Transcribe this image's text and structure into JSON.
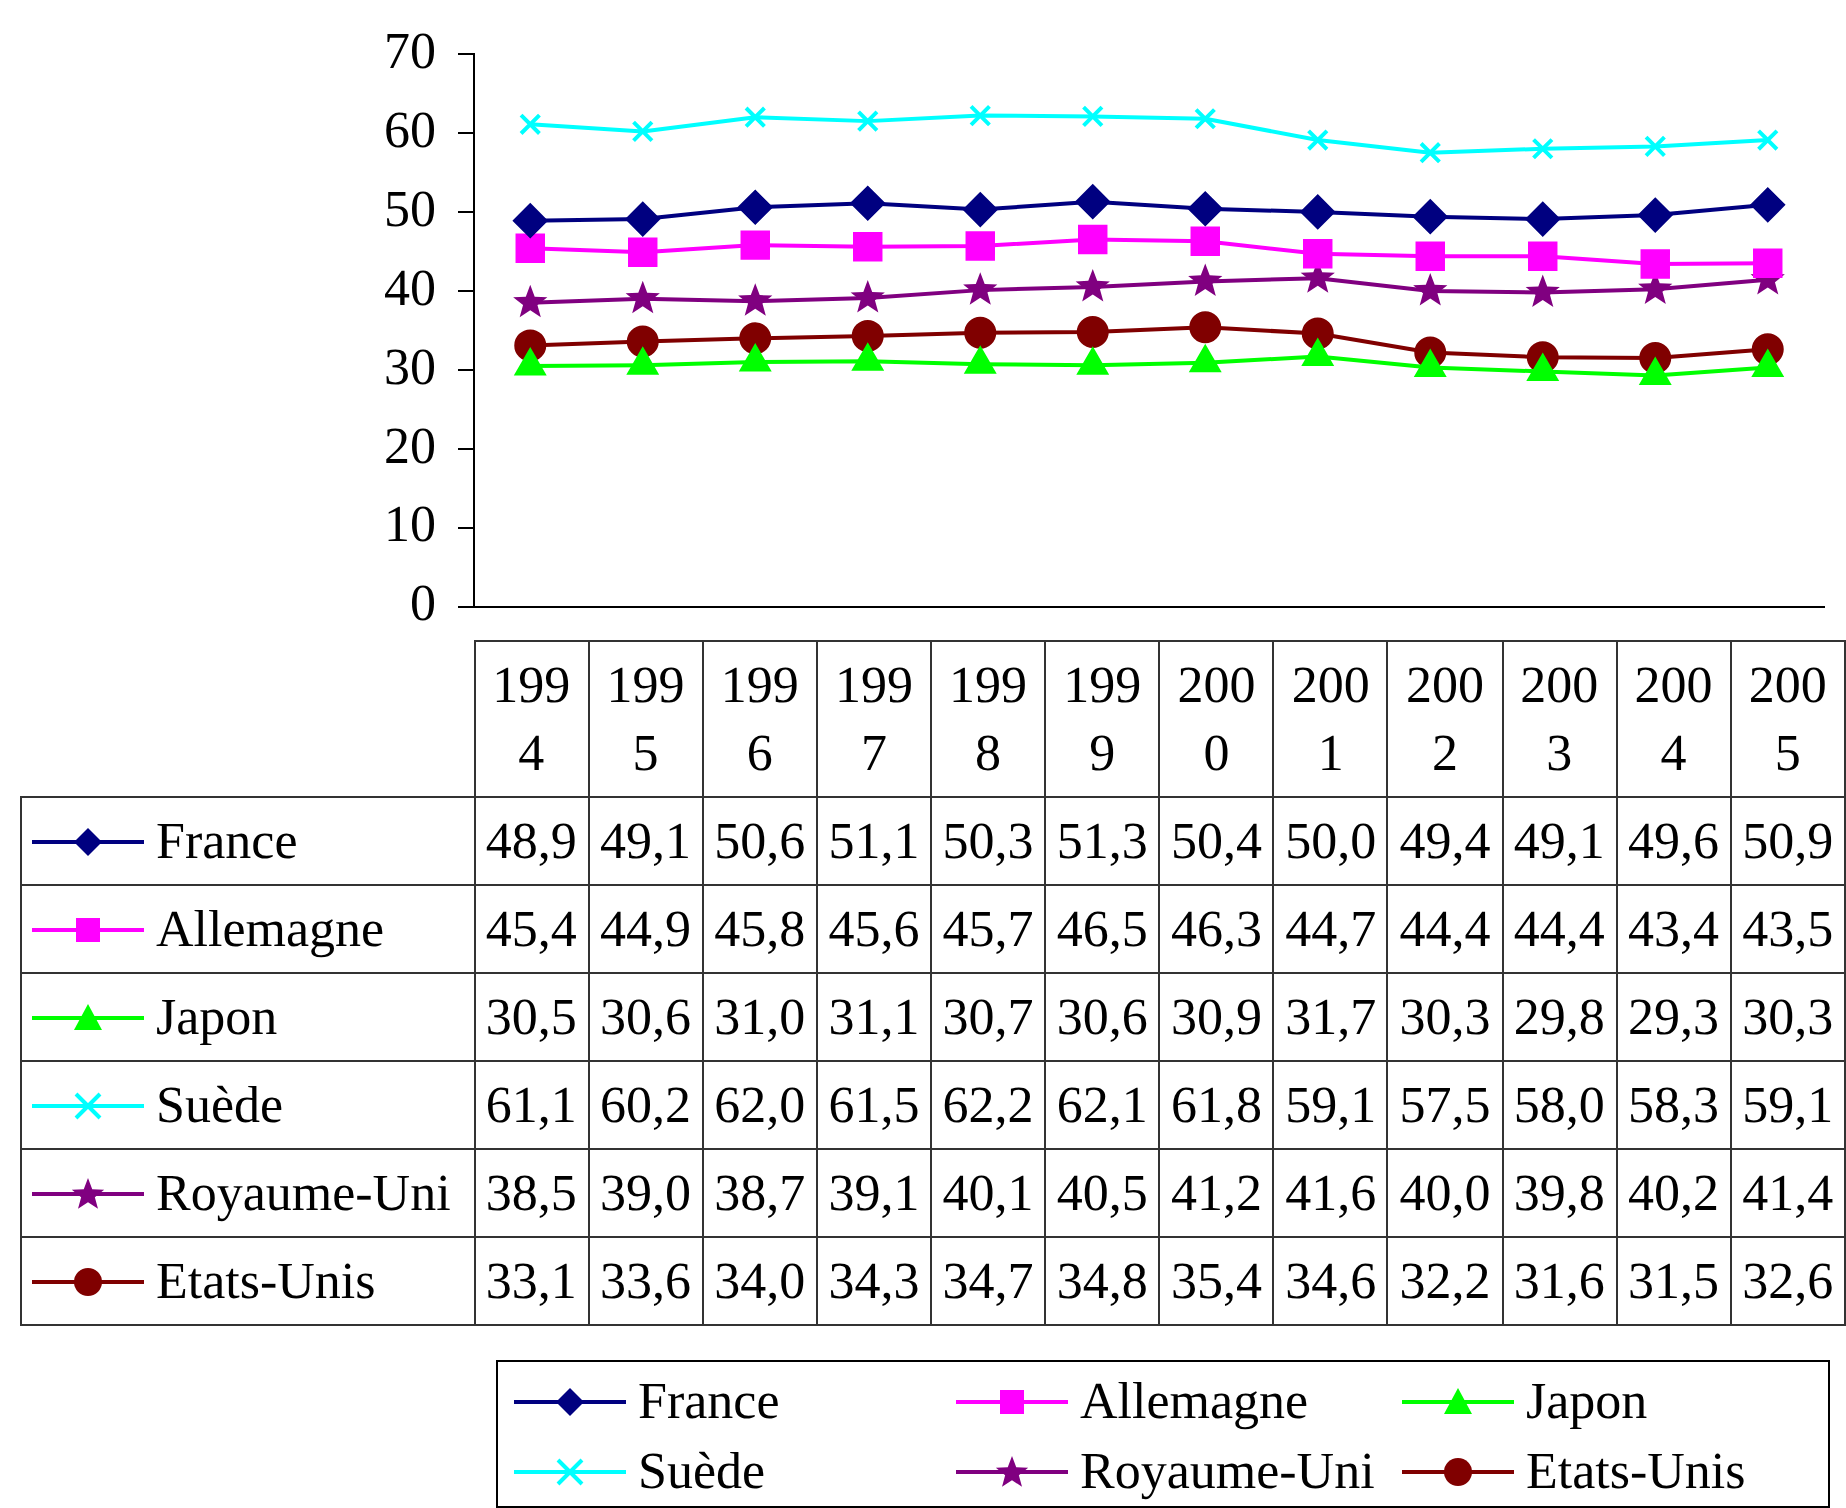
{
  "chart_data": {
    "type": "line",
    "categories": [
      "1994",
      "1995",
      "1996",
      "1997",
      "1998",
      "1999",
      "2000",
      "2001",
      "2002",
      "2003",
      "2004",
      "2005"
    ],
    "series": [
      {
        "name": "France",
        "color": "#000080",
        "marker": "diamond",
        "values": [
          48.9,
          49.1,
          50.6,
          51.1,
          50.3,
          51.3,
          50.4,
          50.0,
          49.4,
          49.1,
          49.6,
          50.9
        ],
        "value_labels": [
          "48,9",
          "49,1",
          "50,6",
          "51,1",
          "50,3",
          "51,3",
          "50,4",
          "50,0",
          "49,4",
          "49,1",
          "49,6",
          "50,9"
        ]
      },
      {
        "name": "Allemagne",
        "color": "#ff00ff",
        "marker": "square",
        "values": [
          45.4,
          44.9,
          45.8,
          45.6,
          45.7,
          46.5,
          46.3,
          44.7,
          44.4,
          44.4,
          43.4,
          43.5
        ],
        "value_labels": [
          "45,4",
          "44,9",
          "45,8",
          "45,6",
          "45,7",
          "46,5",
          "46,3",
          "44,7",
          "44,4",
          "44,4",
          "43,4",
          "43,5"
        ]
      },
      {
        "name": "Japon",
        "color": "#00ff00",
        "marker": "triangle",
        "values": [
          30.5,
          30.6,
          31.0,
          31.1,
          30.7,
          30.6,
          30.9,
          31.7,
          30.3,
          29.8,
          29.3,
          30.3
        ],
        "value_labels": [
          "30,5",
          "30,6",
          "31,0",
          "31,1",
          "30,7",
          "30,6",
          "30,9",
          "31,7",
          "30,3",
          "29,8",
          "29,3",
          "30,3"
        ]
      },
      {
        "name": "Suède",
        "color": "#00ffff",
        "marker": "cross",
        "values": [
          61.1,
          60.2,
          62.0,
          61.5,
          62.2,
          62.1,
          61.8,
          59.1,
          57.5,
          58.0,
          58.3,
          59.1
        ],
        "value_labels": [
          "61,1",
          "60,2",
          "62,0",
          "61,5",
          "62,2",
          "62,1",
          "61,8",
          "59,1",
          "57,5",
          "58,0",
          "58,3",
          "59,1"
        ]
      },
      {
        "name": "Royaume-Uni",
        "color": "#800080",
        "marker": "star",
        "values": [
          38.5,
          39.0,
          38.7,
          39.1,
          40.1,
          40.5,
          41.2,
          41.6,
          40.0,
          39.8,
          40.2,
          41.4
        ],
        "value_labels": [
          "38,5",
          "39,0",
          "38,7",
          "39,1",
          "40,1",
          "40,5",
          "41,2",
          "41,6",
          "40,0",
          "39,8",
          "40,2",
          "41,4"
        ]
      },
      {
        "name": "Etats-Unis",
        "color": "#800000",
        "marker": "circle",
        "values": [
          33.1,
          33.6,
          34.0,
          34.3,
          34.7,
          34.8,
          35.4,
          34.6,
          32.2,
          31.6,
          31.5,
          32.6
        ],
        "value_labels": [
          "33,1",
          "33,6",
          "34,0",
          "34,3",
          "34,7",
          "34,8",
          "35,4",
          "34,6",
          "32,2",
          "31,6",
          "31,5",
          "32,6"
        ]
      }
    ],
    "ylim": [
      0,
      70
    ],
    "yticks": [
      0,
      10,
      20,
      30,
      40,
      50,
      60,
      70
    ],
    "grid": false,
    "legend": "bottom",
    "line_style": "solid"
  }
}
